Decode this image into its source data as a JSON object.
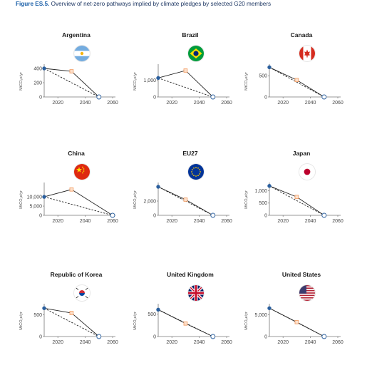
{
  "figure": {
    "label": "Figure ES.5.",
    "title": "Overview of net-zero pathways implied by climate pledges by selected G20 members"
  },
  "colors": {
    "start_point": "#2a5f9e",
    "target_point": "#f4a26b",
    "netzero_point": "#ffffff",
    "pledge_line": "#222222",
    "linear_line": "#222222"
  },
  "chart_data": [
    {
      "type": "line",
      "title": "Argentina",
      "flag_icon": "argentina-flag-icon",
      "ylabel": "MtCO₂e/yr",
      "xlim": [
        2010,
        2060
      ],
      "xticks": [
        2020,
        2040,
        2060
      ],
      "ylim": [
        0,
        440
      ],
      "yticks": [
        0,
        200,
        400
      ],
      "ytick_labels": [
        "0",
        "200",
        "400"
      ],
      "series": [
        {
          "style": "solid",
          "x": [
            2010,
            2030,
            2050
          ],
          "y": [
            400,
            360,
            0
          ]
        },
        {
          "style": "dashed",
          "x": [
            2010,
            2050
          ],
          "y": [
            400,
            0
          ]
        }
      ],
      "points": {
        "start": [
          2010,
          400
        ],
        "target": [
          2030,
          360
        ],
        "netzero": [
          2050,
          0
        ]
      }
    },
    {
      "type": "line",
      "title": "Brazil",
      "flag_icon": "brazil-flag-icon",
      "ylabel": "MtCO₂e/yr",
      "xlim": [
        2010,
        2060
      ],
      "xticks": [
        2020,
        2040,
        2060
      ],
      "ylim": [
        0,
        1900
      ],
      "yticks": [
        0,
        1000
      ],
      "ytick_labels": [
        "0",
        "1,000"
      ],
      "series": [
        {
          "style": "solid",
          "x": [
            2010,
            2030,
            2050
          ],
          "y": [
            1150,
            1600,
            0
          ]
        },
        {
          "style": "dashed",
          "x": [
            2010,
            2050
          ],
          "y": [
            1150,
            0
          ]
        }
      ],
      "points": {
        "start": [
          2010,
          1150
        ],
        "target": [
          2030,
          1600
        ],
        "netzero": [
          2050,
          0
        ]
      }
    },
    {
      "type": "line",
      "title": "Canada",
      "flag_icon": "canada-flag-icon",
      "ylabel": "MtCO₂e/yr",
      "xlim": [
        2010,
        2060
      ],
      "xticks": [
        2020,
        2040,
        2060
      ],
      "ylim": [
        0,
        740
      ],
      "yticks": [
        0,
        500
      ],
      "ytick_labels": [
        "0",
        "500"
      ],
      "series": [
        {
          "style": "solid",
          "x": [
            2010,
            2030,
            2050
          ],
          "y": [
            700,
            400,
            0
          ]
        },
        {
          "style": "dashed",
          "x": [
            2010,
            2050
          ],
          "y": [
            700,
            0
          ]
        }
      ],
      "points": {
        "start": [
          2010,
          700
        ],
        "target": [
          2030,
          400
        ],
        "netzero": [
          2050,
          0
        ]
      }
    },
    {
      "type": "line",
      "title": "China",
      "flag_icon": "china-flag-icon",
      "ylabel": "MtCO₂e/yr",
      "xlim": [
        2010,
        2060
      ],
      "xticks": [
        2020,
        2040,
        2060
      ],
      "ylim": [
        0,
        17000
      ],
      "yticks": [
        0,
        5000,
        10000
      ],
      "ytick_labels": [
        "0",
        "5,000",
        "10,000"
      ],
      "series": [
        {
          "style": "solid",
          "x": [
            2010,
            2030,
            2060
          ],
          "y": [
            10000,
            14000,
            0
          ]
        },
        {
          "style": "dashed",
          "x": [
            2010,
            2060
          ],
          "y": [
            10000,
            0
          ]
        }
      ],
      "points": {
        "start": [
          2010,
          10000
        ],
        "target": [
          2030,
          14000
        ],
        "netzero": [
          2060,
          0
        ]
      }
    },
    {
      "type": "line",
      "title": "EU27",
      "flag_icon": "eu-flag-icon",
      "ylabel": "MtCO₂e/yr",
      "xlim": [
        2010,
        2060
      ],
      "xticks": [
        2020,
        2040,
        2060
      ],
      "ylim": [
        0,
        4400
      ],
      "yticks": [
        0,
        2000
      ],
      "ytick_labels": [
        "0",
        "2,000"
      ],
      "series": [
        {
          "style": "solid",
          "x": [
            2010,
            2030,
            2050
          ],
          "y": [
            4000,
            2200,
            0
          ]
        },
        {
          "style": "dashed",
          "x": [
            2010,
            2050
          ],
          "y": [
            4000,
            0
          ]
        }
      ],
      "points": {
        "start": [
          2010,
          4000
        ],
        "target": [
          2030,
          2200
        ],
        "netzero": [
          2050,
          0
        ]
      }
    },
    {
      "type": "line",
      "title": "Japan",
      "flag_icon": "japan-flag-icon",
      "ylabel": "MtCO₂e/yr",
      "xlim": [
        2010,
        2060
      ],
      "xticks": [
        2020,
        2040,
        2060
      ],
      "ylim": [
        0,
        1280
      ],
      "yticks": [
        0,
        500,
        1000
      ],
      "ytick_labels": [
        "0",
        "500",
        "1,000"
      ],
      "series": [
        {
          "style": "solid",
          "x": [
            2010,
            2030,
            2050
          ],
          "y": [
            1200,
            750,
            0
          ]
        },
        {
          "style": "dashed",
          "x": [
            2010,
            2050
          ],
          "y": [
            1200,
            0
          ]
        }
      ],
      "points": {
        "start": [
          2010,
          1200
        ],
        "target": [
          2030,
          750
        ],
        "netzero": [
          2050,
          0
        ]
      }
    },
    {
      "type": "line",
      "title": "Republic of Korea",
      "flag_icon": "korea-flag-icon",
      "ylabel": "MtCO₂e/yr",
      "xlim": [
        2010,
        2060
      ],
      "xticks": [
        2020,
        2040,
        2060
      ],
      "ylim": [
        0,
        720
      ],
      "yticks": [
        0,
        500
      ],
      "ytick_labels": [
        "0",
        "500"
      ],
      "series": [
        {
          "style": "solid",
          "x": [
            2010,
            2030,
            2050
          ],
          "y": [
            650,
            540,
            0
          ]
        },
        {
          "style": "dashed",
          "x": [
            2010,
            2050
          ],
          "y": [
            650,
            0
          ]
        }
      ],
      "points": {
        "start": [
          2010,
          650
        ],
        "target": [
          2030,
          540
        ],
        "netzero": [
          2050,
          0
        ]
      }
    },
    {
      "type": "line",
      "title": "United Kingdom",
      "flag_icon": "uk-flag-icon",
      "ylabel": "MtCO₂e/yr",
      "xlim": [
        2010,
        2060
      ],
      "xticks": [
        2020,
        2040,
        2060
      ],
      "ylim": [
        0,
        700
      ],
      "yticks": [
        0,
        500
      ],
      "ytick_labels": [
        "0",
        "500"
      ],
      "series": [
        {
          "style": "solid",
          "x": [
            2010,
            2030,
            2050
          ],
          "y": [
            600,
            290,
            0
          ]
        },
        {
          "style": "dashed",
          "x": [
            2010,
            2050
          ],
          "y": [
            600,
            0
          ]
        }
      ],
      "points": {
        "start": [
          2010,
          600
        ],
        "target": [
          2030,
          290
        ],
        "netzero": [
          2050,
          0
        ]
      }
    },
    {
      "type": "line",
      "title": "United States",
      "flag_icon": "us-flag-icon",
      "ylabel": "MtCO₂e/yr",
      "xlim": [
        2010,
        2060
      ],
      "xticks": [
        2020,
        2040,
        2060
      ],
      "ylim": [
        0,
        7200
      ],
      "yticks": [
        0,
        5000
      ],
      "ytick_labels": [
        "0",
        "5,000"
      ],
      "series": [
        {
          "style": "solid",
          "x": [
            2010,
            2030,
            2050
          ],
          "y": [
            6500,
            3300,
            0
          ]
        },
        {
          "style": "dashed",
          "x": [
            2010,
            2050
          ],
          "y": [
            6500,
            0
          ]
        }
      ],
      "points": {
        "start": [
          2010,
          6500
        ],
        "target": [
          2030,
          3300
        ],
        "netzero": [
          2050,
          0
        ]
      }
    }
  ]
}
